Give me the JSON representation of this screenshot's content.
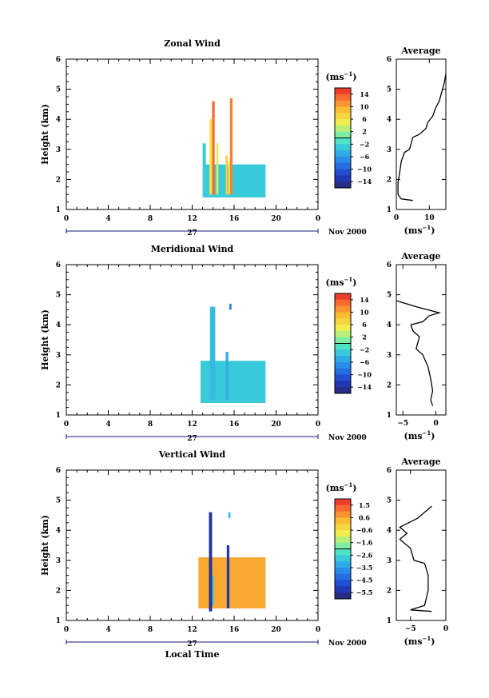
{
  "xlabel_global": "Local Time",
  "date_suffix": "Nov 2000",
  "day_label": "27",
  "chart_data": [
    {
      "type": "heatmap",
      "title": "Zonal Wind",
      "ylabel": "Height (km)",
      "xlim": [
        0,
        24
      ],
      "ylim": [
        1,
        6
      ],
      "x_ticks": [
        "0",
        "4",
        "8",
        "12",
        "16",
        "20",
        "0"
      ],
      "y_ticks": [
        "1",
        "2",
        "3",
        "4",
        "5",
        "6"
      ],
      "colorbar": {
        "unit": "(ms",
        "unit_exp": "−1",
        "unit_close": ")",
        "ticks": [
          "14",
          "10",
          "6",
          "2",
          "−2",
          "−6",
          "−10",
          "−14"
        ],
        "range": [
          -16,
          16
        ]
      },
      "profile": {
        "title": "Average",
        "unit": "(ms",
        "unit_exp": "−1",
        "unit_close": ")",
        "xlim": [
          0,
          15
        ],
        "x_ticks": [
          "0",
          "10"
        ],
        "ylim": [
          1,
          6
        ],
        "points": [
          [
            5,
            1.3
          ],
          [
            1.5,
            1.35
          ],
          [
            0.5,
            1.5
          ],
          [
            0.5,
            1.9
          ],
          [
            1,
            2.2
          ],
          [
            1.5,
            2.6
          ],
          [
            2.5,
            2.9
          ],
          [
            4,
            3.0
          ],
          [
            5,
            3.4
          ],
          [
            7,
            3.5
          ],
          [
            9,
            3.7
          ],
          [
            9.5,
            3.9
          ],
          [
            11,
            4.1
          ],
          [
            12,
            4.4
          ],
          [
            13,
            4.6
          ],
          [
            14.5,
            5.2
          ],
          [
            15,
            5.5
          ]
        ]
      },
      "blocks": [
        {
          "t0": 13.3,
          "t1": 19,
          "h0": 1.4,
          "h1": 2.5,
          "v": -3
        },
        {
          "t0": 13.0,
          "t1": 13.3,
          "h0": 1.4,
          "h1": 3.2,
          "v": -3
        },
        {
          "t0": 13.9,
          "t1": 14.15,
          "h0": 1.5,
          "h1": 4.6,
          "v": 13
        },
        {
          "t0": 13.65,
          "t1": 13.9,
          "h0": 1.5,
          "h1": 4.0,
          "v": 6
        },
        {
          "t0": 14.3,
          "t1": 14.5,
          "h0": 1.5,
          "h1": 3.2,
          "v": 4
        },
        {
          "t0": 15.2,
          "t1": 15.4,
          "h0": 1.5,
          "h1": 2.8,
          "v": 8
        },
        {
          "t0": 15.6,
          "t1": 15.85,
          "h0": 1.5,
          "h1": 4.7,
          "v": 12
        },
        {
          "t0": 15.45,
          "t1": 15.6,
          "h0": 1.5,
          "h1": 2.6,
          "v": 5
        }
      ]
    },
    {
      "type": "heatmap",
      "title": "Meridional Wind",
      "ylabel": "Height (km)",
      "xlim": [
        0,
        24
      ],
      "ylim": [
        1,
        6
      ],
      "x_ticks": [
        "0",
        "4",
        "8",
        "12",
        "16",
        "20",
        "0"
      ],
      "y_ticks": [
        "1",
        "2",
        "3",
        "4",
        "5",
        "6"
      ],
      "colorbar": {
        "unit": "(ms",
        "unit_exp": "−1",
        "unit_close": ")",
        "ticks": [
          "14",
          "10",
          "6",
          "2",
          "−2",
          "−6",
          "−10",
          "−14"
        ],
        "range": [
          -16,
          16
        ]
      },
      "profile": {
        "title": "Average",
        "unit": "(ms",
        "unit_exp": "−1",
        "unit_close": ")",
        "xlim": [
          -6,
          1.5
        ],
        "x_ticks": [
          "−5",
          "0"
        ],
        "ylim": [
          1,
          6
        ],
        "points": [
          [
            -0.5,
            1.3
          ],
          [
            -0.8,
            1.5
          ],
          [
            -0.5,
            1.8
          ],
          [
            -0.8,
            2.2
          ],
          [
            -1.2,
            2.6
          ],
          [
            -2,
            3.0
          ],
          [
            -3,
            3.2
          ],
          [
            -2.5,
            3.6
          ],
          [
            -3.5,
            3.8
          ],
          [
            -3.8,
            4.0
          ],
          [
            -2,
            4.1
          ],
          [
            -1,
            4.3
          ],
          [
            0.5,
            4.4
          ],
          [
            -3,
            4.6
          ],
          [
            -6,
            4.8
          ]
        ]
      },
      "blocks": [
        {
          "t0": 12.8,
          "t1": 19,
          "h0": 1.4,
          "h1": 2.8,
          "v": -3
        },
        {
          "t0": 13.7,
          "t1": 14.2,
          "h0": 1.5,
          "h1": 4.6,
          "v": -4
        },
        {
          "t0": 15.2,
          "t1": 15.45,
          "h0": 1.5,
          "h1": 3.1,
          "v": -5
        },
        {
          "t0": 15.55,
          "t1": 15.75,
          "h0": 4.5,
          "h1": 4.7,
          "v": -8
        },
        {
          "t0": 18.0,
          "t1": 18.3,
          "h0": 1.5,
          "h1": 2.6,
          "v": -3
        }
      ]
    },
    {
      "type": "heatmap",
      "title": "Vertical Wind",
      "ylabel": "Height (km)",
      "xlabel": "Local Time",
      "xlim": [
        0,
        24
      ],
      "ylim": [
        1,
        6
      ],
      "x_ticks": [
        "0",
        "4",
        "8",
        "12",
        "16",
        "20",
        "0"
      ],
      "y_ticks": [
        "1",
        "2",
        "3",
        "4",
        "5",
        "6"
      ],
      "colorbar": {
        "unit": "(ms",
        "unit_exp": "−1",
        "unit_close": ")",
        "ticks": [
          "1.5",
          "0.6",
          "−0.6",
          "−1.6",
          "−2.6",
          "−3.5",
          "−4.5",
          "−5.5"
        ],
        "range": [
          -6,
          2
        ]
      },
      "profile": {
        "title": "Average",
        "unit": "(ms",
        "unit_exp": "−1",
        "unit_close": ")",
        "xlim": [
          -7,
          0
        ],
        "x_ticks": [
          "−5",
          "0"
        ],
        "ylim": [
          1,
          6
        ],
        "points": [
          [
            -2,
            1.3
          ],
          [
            -5,
            1.35
          ],
          [
            -3,
            1.5
          ],
          [
            -2.5,
            2.0
          ],
          [
            -2.5,
            2.5
          ],
          [
            -3,
            2.9
          ],
          [
            -4.5,
            3.0
          ],
          [
            -5,
            3.4
          ],
          [
            -6.5,
            3.7
          ],
          [
            -5.5,
            3.9
          ],
          [
            -6.5,
            4.1
          ],
          [
            -4,
            4.4
          ],
          [
            -2.5,
            4.7
          ],
          [
            -2,
            4.8
          ]
        ]
      },
      "blocks": [
        {
          "t0": 12.6,
          "t1": 19,
          "h0": 1.4,
          "h1": 3.1,
          "v": 0.5
        },
        {
          "t0": 13.6,
          "t1": 13.9,
          "h0": 1.3,
          "h1": 4.6,
          "v": -5.5
        },
        {
          "t0": 13.9,
          "t1": 14.05,
          "h0": 1.5,
          "h1": 2.5,
          "v": -3
        },
        {
          "t0": 15.3,
          "t1": 15.55,
          "h0": 1.4,
          "h1": 3.5,
          "v": -5.2
        },
        {
          "t0": 15.45,
          "t1": 15.65,
          "h0": 4.4,
          "h1": 4.6,
          "v": -3
        }
      ]
    }
  ]
}
